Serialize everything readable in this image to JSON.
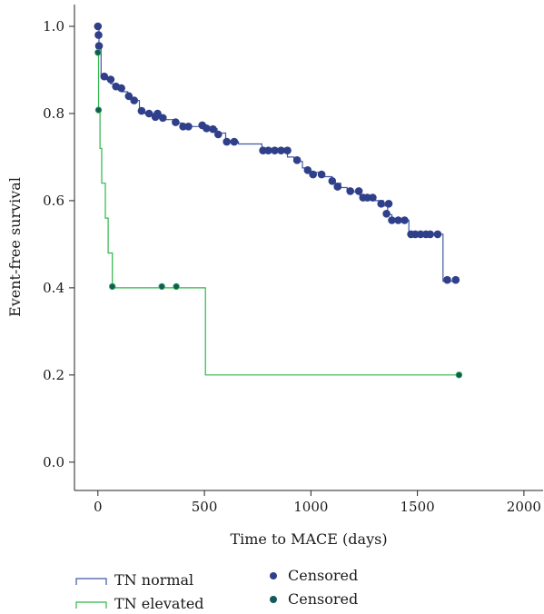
{
  "chart_data": {
    "type": "line",
    "title": "",
    "xlabel": "Time to MACE (days)",
    "ylabel": "Event-free survival",
    "xlim": [
      -110,
      2090
    ],
    "ylim": [
      -0.065,
      1.05
    ],
    "xticks": [
      0,
      500,
      1000,
      1500,
      2000
    ],
    "xtick_labels": [
      "0",
      "500",
      "1000",
      "1500",
      "2000"
    ],
    "yticks": [
      0.0,
      0.2,
      0.4,
      0.6,
      0.8,
      1.0
    ],
    "ytick_labels": [
      "0.0",
      "0.2",
      "0.4",
      "0.6",
      "0.8",
      "1.0"
    ],
    "grid": false,
    "legend_position": "bottom",
    "series": [
      {
        "name": "TN normal",
        "color": "#3f58a4",
        "marker_color": "#303f8a",
        "censored_label": "Censored",
        "steps": [
          [
            0,
            1.0
          ],
          [
            5,
            0.955
          ],
          [
            15,
            0.885
          ],
          [
            40,
            0.878
          ],
          [
            60,
            0.868
          ],
          [
            80,
            0.86
          ],
          [
            110,
            0.85
          ],
          [
            140,
            0.84
          ],
          [
            160,
            0.83
          ],
          [
            195,
            0.806
          ],
          [
            220,
            0.8
          ],
          [
            260,
            0.792
          ],
          [
            300,
            0.786
          ],
          [
            360,
            0.778
          ],
          [
            400,
            0.77
          ],
          [
            480,
            0.77
          ],
          [
            520,
            0.765
          ],
          [
            560,
            0.755
          ],
          [
            600,
            0.735
          ],
          [
            660,
            0.73
          ],
          [
            770,
            0.715
          ],
          [
            890,
            0.7
          ],
          [
            920,
            0.69
          ],
          [
            960,
            0.675
          ],
          [
            990,
            0.665
          ],
          [
            1060,
            0.655
          ],
          [
            1100,
            0.64
          ],
          [
            1140,
            0.63
          ],
          [
            1170,
            0.62
          ],
          [
            1230,
            0.61
          ],
          [
            1300,
            0.6
          ],
          [
            1340,
            0.588
          ],
          [
            1360,
            0.568
          ],
          [
            1380,
            0.555
          ],
          [
            1460,
            0.523
          ],
          [
            1620,
            0.415
          ],
          [
            1690,
            0.415
          ]
        ],
        "censored": [
          [
            0,
            1.0
          ],
          [
            3,
            0.98
          ],
          [
            5,
            0.955
          ],
          [
            30,
            0.885
          ],
          [
            60,
            0.878
          ],
          [
            85,
            0.862
          ],
          [
            110,
            0.858
          ],
          [
            145,
            0.84
          ],
          [
            170,
            0.83
          ],
          [
            205,
            0.806
          ],
          [
            240,
            0.8
          ],
          [
            270,
            0.792
          ],
          [
            280,
            0.8
          ],
          [
            305,
            0.79
          ],
          [
            365,
            0.78
          ],
          [
            400,
            0.77
          ],
          [
            425,
            0.77
          ],
          [
            490,
            0.773
          ],
          [
            510,
            0.766
          ],
          [
            540,
            0.764
          ],
          [
            565,
            0.752
          ],
          [
            605,
            0.735
          ],
          [
            640,
            0.735
          ],
          [
            775,
            0.715
          ],
          [
            800,
            0.715
          ],
          [
            830,
            0.715
          ],
          [
            860,
            0.715
          ],
          [
            890,
            0.715
          ],
          [
            935,
            0.693
          ],
          [
            985,
            0.67
          ],
          [
            1010,
            0.66
          ],
          [
            1050,
            0.66
          ],
          [
            1100,
            0.645
          ],
          [
            1125,
            0.632
          ],
          [
            1185,
            0.622
          ],
          [
            1225,
            0.622
          ],
          [
            1245,
            0.607
          ],
          [
            1265,
            0.607
          ],
          [
            1290,
            0.607
          ],
          [
            1330,
            0.593
          ],
          [
            1365,
            0.593
          ],
          [
            1355,
            0.57
          ],
          [
            1380,
            0.555
          ],
          [
            1410,
            0.555
          ],
          [
            1440,
            0.555
          ],
          [
            1470,
            0.523
          ],
          [
            1490,
            0.523
          ],
          [
            1515,
            0.523
          ],
          [
            1540,
            0.523
          ],
          [
            1560,
            0.523
          ],
          [
            1595,
            0.523
          ],
          [
            1640,
            0.418
          ],
          [
            1680,
            0.418
          ]
        ]
      },
      {
        "name": "TN elevated",
        "color": "#2fb54a",
        "marker_color": "#155a5a",
        "censored_label": "Censored",
        "steps": [
          [
            0,
            0.94
          ],
          [
            3,
            0.805
          ],
          [
            10,
            0.72
          ],
          [
            18,
            0.64
          ],
          [
            35,
            0.56
          ],
          [
            48,
            0.48
          ],
          [
            68,
            0.4
          ],
          [
            505,
            0.2
          ],
          [
            1695,
            0.2
          ]
        ],
        "censored": [
          [
            0,
            0.94
          ],
          [
            3,
            0.808
          ],
          [
            68,
            0.403
          ],
          [
            300,
            0.403
          ],
          [
            368,
            0.403
          ],
          [
            1695,
            0.2
          ]
        ]
      }
    ]
  }
}
